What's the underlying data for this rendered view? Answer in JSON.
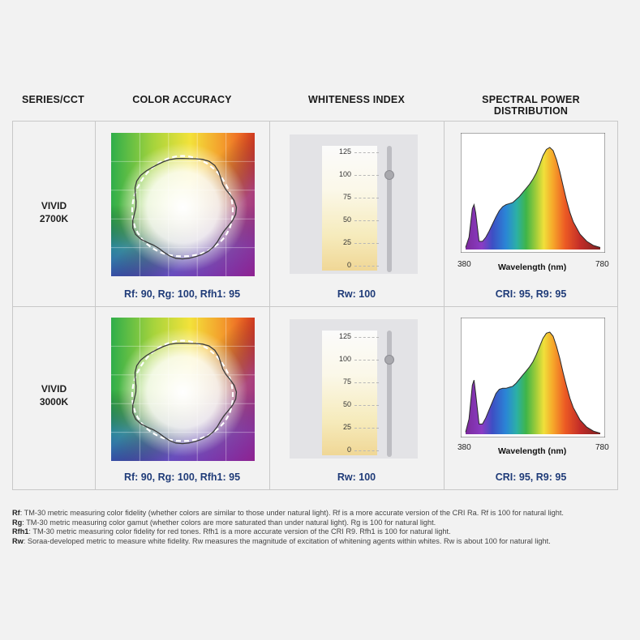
{
  "headers": {
    "series": "SERIES/CCT",
    "color_accuracy": "COLOR ACCURACY",
    "whiteness_index": "WHITENESS INDEX",
    "spd": "SPECTRAL POWER DISTRIBUTION"
  },
  "rows": [
    {
      "series_line1": "VIVID",
      "series_line2": "2700K",
      "color_caption": "Rf: 90, Rg: 100, Rfh1: 95",
      "whiteness_caption": "Rw: 100",
      "whiteness_value": 100,
      "spd_caption": "CRI: 95, R9: 95"
    },
    {
      "series_line1": "VIVID",
      "series_line2": "3000K",
      "color_caption": "Rf: 90, Rg: 100, Rfh1: 95",
      "whiteness_caption": "Rw: 100",
      "whiteness_value": 100,
      "spd_caption": "CRI: 95, R9: 95"
    }
  ],
  "whiteness_scale": {
    "ticks": [
      "125",
      "100",
      "75",
      "50",
      "25",
      "0"
    ],
    "max": 125
  },
  "spd_axis": {
    "x_min_label": "380",
    "x_max_label": "780",
    "xlabel": "Wavelength (nm)"
  },
  "chart_data": [
    {
      "type": "area",
      "xlabel": "Wavelength (nm)",
      "xlim": [
        380,
        780
      ],
      "x": [
        380,
        390,
        400,
        405,
        410,
        420,
        430,
        440,
        450,
        460,
        470,
        480,
        490,
        500,
        510,
        520,
        530,
        540,
        550,
        560,
        570,
        580,
        590,
        600,
        610,
        620,
        630,
        640,
        650,
        660,
        670,
        680,
        690,
        700,
        720,
        740,
        760,
        780
      ],
      "series": [
        {
          "values": [
            0.02,
            0.12,
            0.4,
            0.44,
            0.36,
            0.08,
            0.08,
            0.12,
            0.18,
            0.25,
            0.32,
            0.38,
            0.42,
            0.44,
            0.45,
            0.46,
            0.49,
            0.52,
            0.56,
            0.6,
            0.64,
            0.69,
            0.75,
            0.83,
            0.92,
            0.98,
            1.0,
            0.97,
            0.88,
            0.76,
            0.62,
            0.48,
            0.36,
            0.27,
            0.15,
            0.08,
            0.04,
            0.02
          ]
        }
      ]
    },
    {
      "type": "area",
      "xlabel": "Wavelength (nm)",
      "xlim": [
        380,
        780
      ],
      "x": [
        380,
        390,
        400,
        405,
        410,
        420,
        430,
        440,
        450,
        460,
        470,
        480,
        490,
        500,
        510,
        520,
        530,
        540,
        550,
        560,
        570,
        580,
        590,
        600,
        610,
        620,
        630,
        640,
        650,
        660,
        670,
        680,
        690,
        700,
        720,
        740,
        760,
        780
      ],
      "series": [
        {
          "values": [
            0.02,
            0.15,
            0.48,
            0.53,
            0.4,
            0.1,
            0.1,
            0.16,
            0.24,
            0.32,
            0.4,
            0.44,
            0.45,
            0.45,
            0.46,
            0.47,
            0.5,
            0.54,
            0.58,
            0.62,
            0.66,
            0.71,
            0.78,
            0.86,
            0.94,
            0.99,
            1.0,
            0.96,
            0.86,
            0.74,
            0.6,
            0.47,
            0.35,
            0.26,
            0.14,
            0.07,
            0.03,
            0.01
          ]
        }
      ]
    }
  ],
  "notes": [
    {
      "term": "Rf",
      "text": ": TM-30 metric measuring color fidelity (whether colors are similar to those under natural light). Rf is a more accurate version of the CRI Ra. Rf is 100 for natural light."
    },
    {
      "term": "Rg",
      "text": ": TM-30 metric measuring color gamut (whether colors are more saturated than under natural light). Rg is 100 for natural light."
    },
    {
      "term": "Rfh1",
      "text": ": TM-30 metric measuring color fidelity for red tones. Rfh1 is a more accurate version of the CRI R9. Rfh1 is 100 for natural light."
    },
    {
      "term": "Rw",
      "text": ": Soraa-developed metric to measure white fidelity. Rw measures the magnitude of excitation of whitening agents within whites. Rw is about 100 for natural light."
    }
  ]
}
